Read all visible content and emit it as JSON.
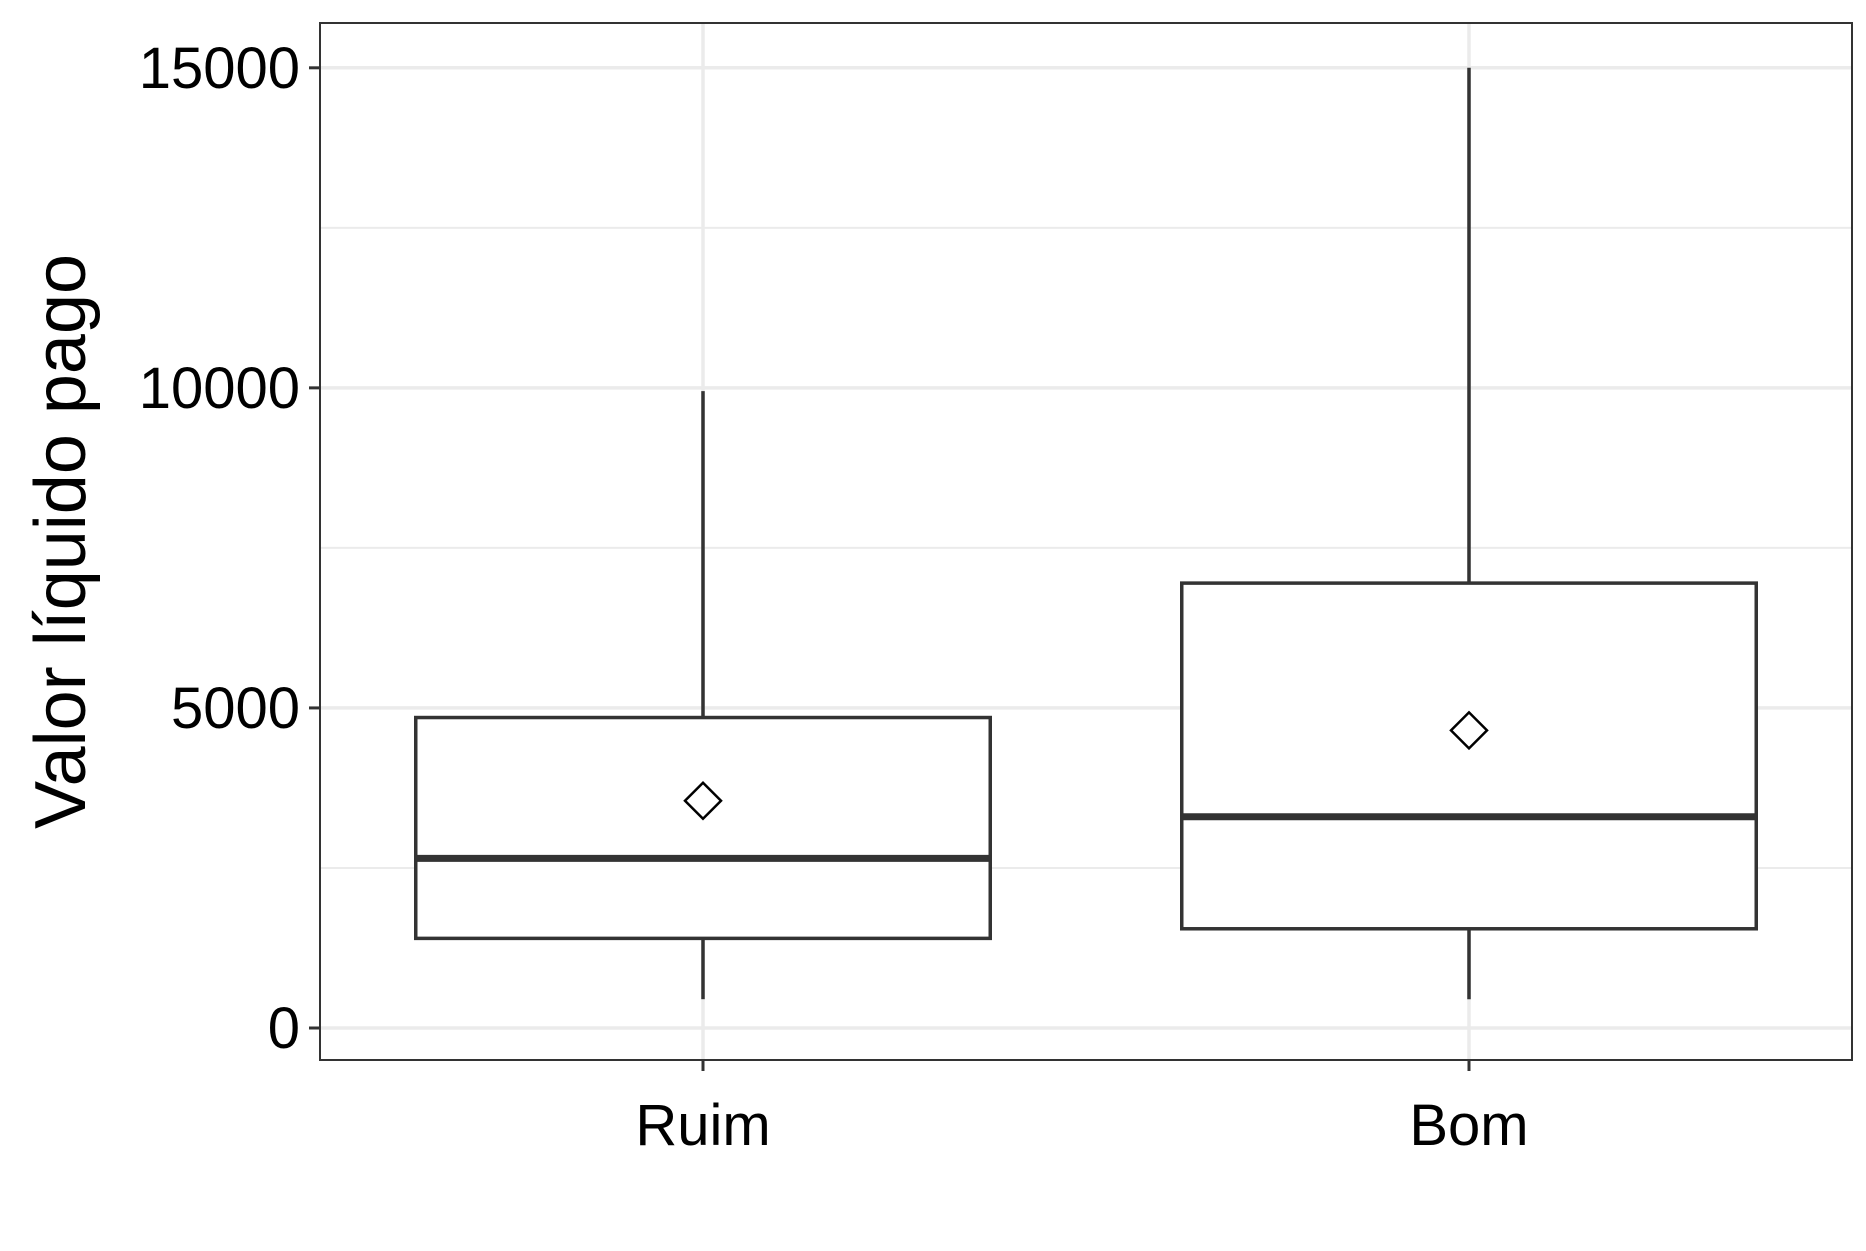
{
  "chart_data": {
    "type": "boxplot",
    "title": "",
    "xlabel": "",
    "ylabel": "Valor líquido pago",
    "ylim": [
      -500,
      15700
    ],
    "yticks": [
      0,
      5000,
      10000,
      15000
    ],
    "y_tick_labels": [
      "0",
      "5000",
      "10000",
      "15000"
    ],
    "grid": true,
    "categories": [
      "Ruim",
      "Bom"
    ],
    "boxes": [
      {
        "category": "Ruim",
        "whisker_low": 450,
        "q1": 1400,
        "median": 2650,
        "q3": 4850,
        "whisker_high": 9950,
        "mean": 3550
      },
      {
        "category": "Bom",
        "whisker_low": 450,
        "q1": 1550,
        "median": 3300,
        "q3": 6950,
        "whisker_high": 15000,
        "mean": 4650
      }
    ]
  }
}
